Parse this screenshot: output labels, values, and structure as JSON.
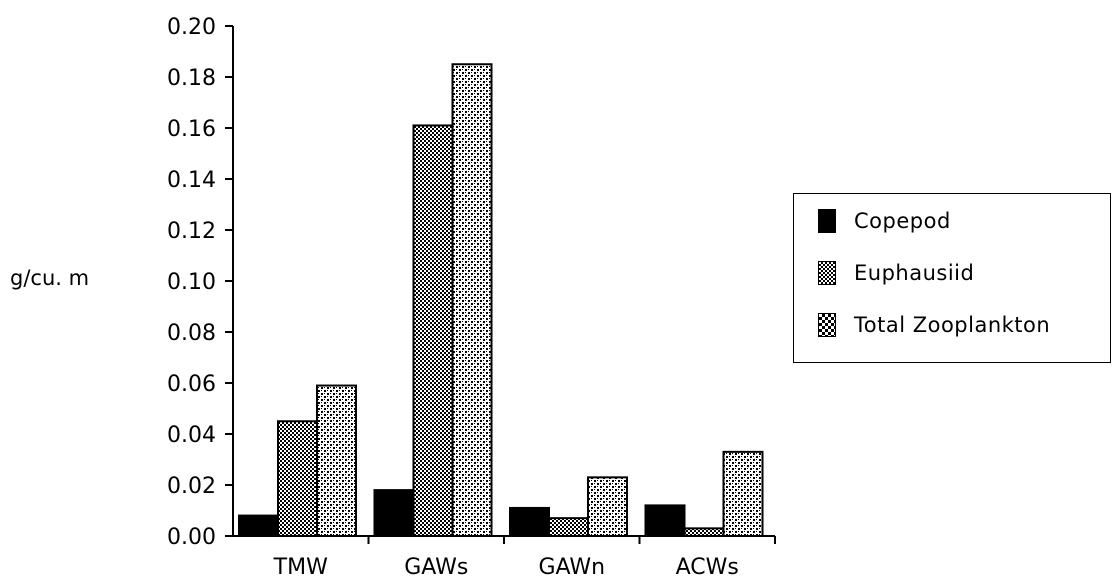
{
  "chart_data": {
    "type": "bar",
    "ylabel": "g/cu. m",
    "xlabel": "",
    "ylim": [
      0,
      0.2
    ],
    "yticks": [
      "0.00",
      "0.02",
      "0.04",
      "0.06",
      "0.08",
      "0.10",
      "0.12",
      "0.14",
      "0.16",
      "0.18",
      "0.20"
    ],
    "categories": [
      "TMW",
      "GAWs",
      "GAWn",
      "ACWs"
    ],
    "series": [
      {
        "name": "Copepod",
        "values": [
          0.008,
          0.018,
          0.011,
          0.012
        ],
        "color": "#000000"
      },
      {
        "name": "Euphausiid",
        "values": [
          0.045,
          0.161,
          0.007,
          0.003
        ],
        "color": "#6e6e6e"
      },
      {
        "name": "Total Zooplankton",
        "values": [
          0.059,
          0.185,
          0.023,
          0.033
        ],
        "color": "#b8b8b8"
      }
    ],
    "legend_position": "right"
  }
}
